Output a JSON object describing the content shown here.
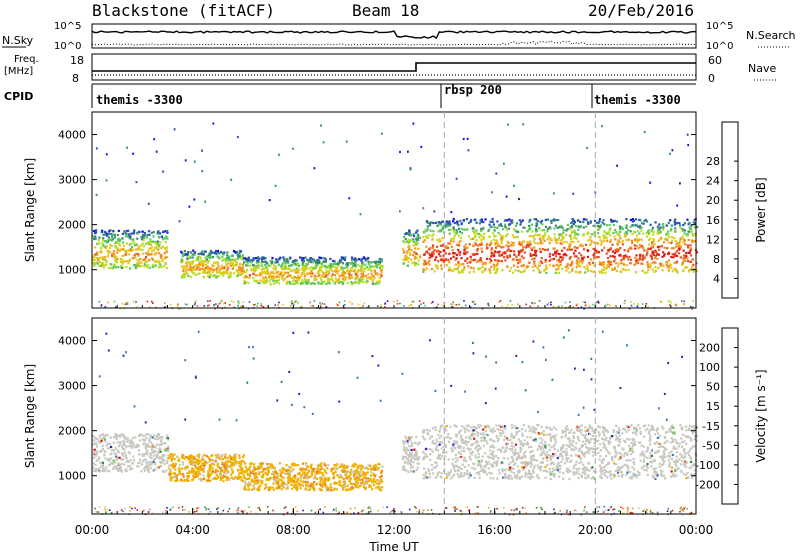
{
  "header": {
    "station": "Blackstone (fitACF)",
    "beam": "Beam 18",
    "date": "20/Feb/2016"
  },
  "strips": {
    "nsky_label": "N.Sky",
    "nsky_top": "10^5",
    "nsky_bottom": "10^0",
    "nsearch_top": "10^5",
    "nsearch_bottom": "10^0",
    "nsearch_label": "N.Search",
    "freq_label_1": "Freq.",
    "freq_label_2": "[MHz]",
    "freq_top": "18",
    "freq_bottom": "8",
    "nave_top": "60",
    "nave_bottom": "0",
    "nave_label": "Nave",
    "cpid_label": "CPID",
    "cpid_segments": [
      {
        "label": "themis -3300",
        "start_hour": 0,
        "end_hour": 14
      },
      {
        "label": "rbsp 200",
        "start_hour": 14,
        "end_hour": 20
      },
      {
        "label": "themis -3300",
        "start_hour": 20,
        "end_hour": 24
      }
    ]
  },
  "chart_data": [
    {
      "type": "heatmap",
      "title": "",
      "xlabel": "",
      "ylabel": "Slant Range [km]",
      "xlim": [
        0,
        24
      ],
      "ylim": [
        150,
        4500
      ],
      "yticks": [
        1000,
        2000,
        3000,
        4000
      ],
      "colorbar": {
        "label": "Power [dB]",
        "ticks": [
          "4",
          "8",
          "12",
          "16",
          "20",
          "24",
          "28"
        ],
        "colors": [
          "#1010e8",
          "#2a50b8",
          "#3a8a78",
          "#5ac858",
          "#b8e020",
          "#f0c020",
          "#f09020",
          "#e85020",
          "#e01818"
        ]
      },
      "scatter_bands": [
        {
          "x_start": 0.0,
          "x_end": 3.0,
          "y_low": 1050,
          "y_high": 1900,
          "level": "mid"
        },
        {
          "x_start": 3.5,
          "x_end": 6.0,
          "y_low": 850,
          "y_high": 1450,
          "level": "mid"
        },
        {
          "x_start": 6.0,
          "x_end": 11.5,
          "y_low": 700,
          "y_high": 1300,
          "level": "mid"
        },
        {
          "x_start": 12.3,
          "x_end": 13.0,
          "y_low": 1100,
          "y_high": 1900,
          "level": "mid"
        },
        {
          "x_start": 13.1,
          "x_end": 24.0,
          "y_low": 950,
          "y_high": 2150,
          "level": "high"
        }
      ]
    },
    {
      "type": "heatmap",
      "title": "",
      "xlabel": "Time UT",
      "ylabel": "Slant Range [km]",
      "xlim": [
        0,
        24
      ],
      "ylim": [
        150,
        4500
      ],
      "yticks": [
        1000,
        2000,
        3000,
        4000
      ],
      "xticks": [
        "00:00",
        "04:00",
        "08:00",
        "12:00",
        "16:00",
        "20:00",
        "00:00"
      ],
      "colorbar": {
        "label": "Velocity [m s⁻¹]",
        "ticks": [
          "200",
          "100",
          "50",
          "15",
          "-15",
          "-50",
          "-100",
          "-200"
        ],
        "colors": [
          "#1828c0",
          "#3878b8",
          "#2a8a3a",
          "#60c840",
          "#c8c8c0",
          "#f0b000",
          "#f08020",
          "#e84010",
          "#e01010"
        ]
      },
      "scatter_bands": [
        {
          "x_start": 0.0,
          "x_end": 3.0,
          "y_low": 1100,
          "y_high": 1950,
          "level": "ground"
        },
        {
          "x_start": 3.0,
          "x_end": 6.0,
          "y_low": 900,
          "y_high": 1500,
          "level": "neg"
        },
        {
          "x_start": 6.0,
          "x_end": 11.5,
          "y_low": 700,
          "y_high": 1300,
          "level": "neg"
        },
        {
          "x_start": 12.3,
          "x_end": 13.0,
          "y_low": 1100,
          "y_high": 1900,
          "level": "ground"
        },
        {
          "x_start": 13.1,
          "x_end": 24.0,
          "y_low": 950,
          "y_high": 2150,
          "level": "ground"
        }
      ]
    }
  ]
}
